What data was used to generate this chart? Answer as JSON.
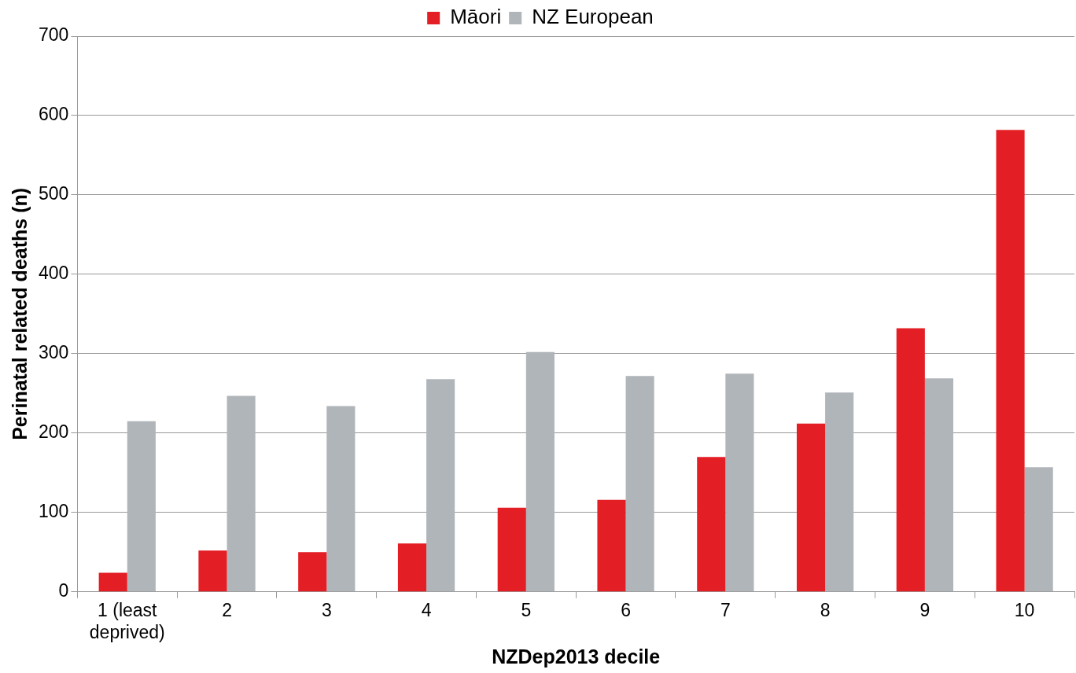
{
  "chart_data": {
    "type": "bar",
    "xlabel": "NZDep2013 decile",
    "ylabel": "Perinatal related deaths (n)",
    "categories": [
      "1 (least deprived)",
      "2",
      "3",
      "4",
      "5",
      "6",
      "7",
      "8",
      "9",
      "10"
    ],
    "series": [
      {
        "name": "Māori",
        "color": "#e31e24",
        "values": [
          24,
          52,
          50,
          61,
          106,
          116,
          170,
          212,
          332,
          582
        ]
      },
      {
        "name": "NZ European",
        "color": "#b0b5ba",
        "values": [
          215,
          247,
          234,
          268,
          302,
          272,
          275,
          251,
          269,
          157
        ]
      }
    ],
    "ylim": [
      0,
      700
    ],
    "yticks": [
      0,
      100,
      200,
      300,
      400,
      500,
      600,
      700
    ],
    "grid": "y",
    "legend": "top"
  }
}
